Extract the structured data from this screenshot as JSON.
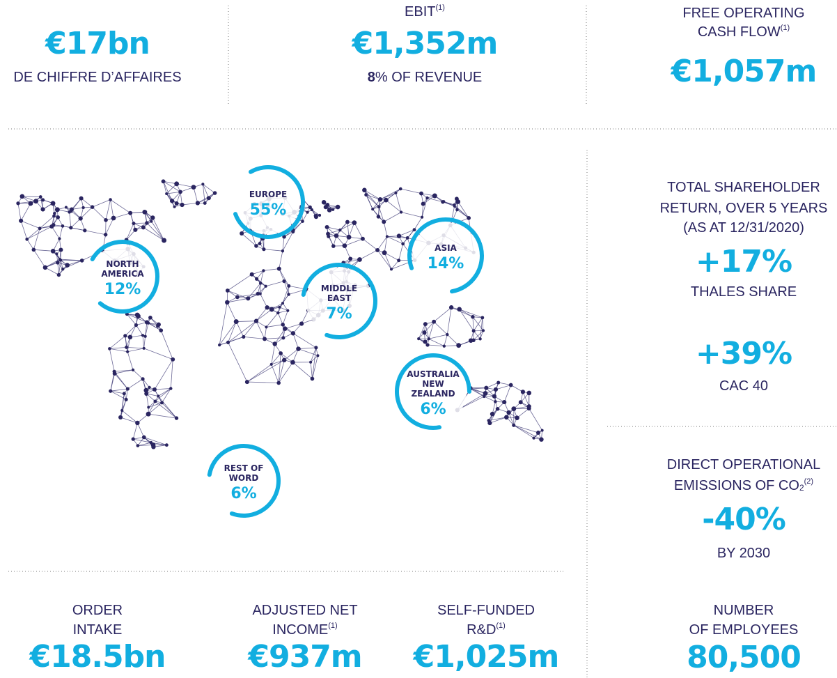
{
  "top": [
    {
      "value": "€17bn",
      "label": "DE CHIFFRE D’AFFAIRES"
    },
    {
      "title": "EBIT",
      "title_note": "(1)",
      "value": "€1,352m",
      "sub_bold": "8",
      "sub_rest": "% OF REVENUE"
    },
    {
      "title_lines": [
        "FREE OPERATING",
        "CASH FLOW"
      ],
      "title_note": "(1)",
      "value": "€1,057m"
    }
  ],
  "regions": [
    {
      "name_lines": [
        "EUROPE"
      ],
      "share": "55%"
    },
    {
      "name_lines": [
        "NORTH",
        "AMERICA"
      ],
      "share": "12%"
    },
    {
      "name_lines": [
        "MIDDLE",
        "EAST"
      ],
      "share": "7%"
    },
    {
      "name_lines": [
        "ASIA"
      ],
      "share": "14%"
    },
    {
      "name_lines": [
        "AUSTRALIA",
        "NEW",
        "ZEALAND"
      ],
      "share": "6%"
    },
    {
      "name_lines": [
        "REST OF",
        "WORD"
      ],
      "share": "6%"
    }
  ],
  "shareholder_return": {
    "title_lines": [
      "TOTAL SHAREHOLDER",
      "RETURN, OVER 5 YEARS",
      "(AS AT 12/31/2020)"
    ],
    "items": [
      {
        "value": "+17%",
        "label": "THALES SHARE"
      },
      {
        "value": "+39%",
        "label": "CAC 40"
      }
    ]
  },
  "emissions": {
    "title_line1": "DIRECT OPERATIONAL",
    "title_line2": "EMISSIONS OF CO",
    "subscript": "2",
    "note": "(2)",
    "value": "-40%",
    "label": "BY 2030"
  },
  "employees": {
    "title_lines": [
      "NUMBER",
      "OF EMPLOYEES"
    ],
    "value": "80,500"
  },
  "bottom": [
    {
      "title_lines": [
        "ORDER",
        "INTAKE"
      ],
      "value": "€18.5bn"
    },
    {
      "title_lines": [
        "ADJUSTED NET",
        "INCOME"
      ],
      "title_note": "(1)",
      "value": "€937m"
    },
    {
      "title_lines": [
        "SELF-FUNDED",
        "R&D"
      ],
      "title_note": "(1)",
      "value": "€1,025m"
    }
  ]
}
